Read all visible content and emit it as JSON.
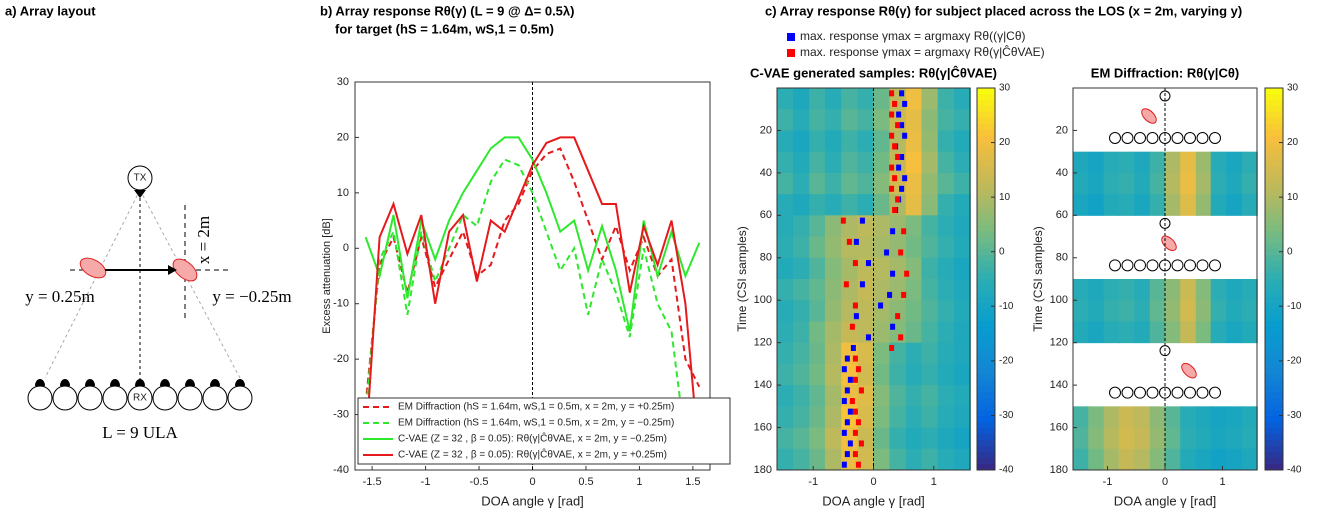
{
  "diagram": {
    "title": "a) Array layout",
    "tx": "TX",
    "rx": "RX",
    "x_label": "x = 2m",
    "y_left": "y = 0.25m",
    "y_right": "y = −0.25m",
    "array_label": "L = 9 ULA"
  },
  "chart_data": [
    {
      "type": "line",
      "title": "b) Array response Rθ(γ) (L = 9 @ Δ= 0.5λ)",
      "subtitle": "for target (hS = 1.64m, wS,1 = 0.5m)",
      "xlabel": "DOA angle γ  [rad]",
      "ylabel": "Excess attenuation [dB]",
      "x": [
        -1.56,
        -1.43,
        -1.3,
        -1.17,
        -1.04,
        -0.91,
        -0.78,
        -0.65,
        -0.52,
        -0.39,
        -0.26,
        -0.13,
        0,
        0.13,
        0.26,
        0.39,
        0.52,
        0.65,
        0.78,
        0.91,
        1.04,
        1.17,
        1.3,
        1.43,
        1.56
      ],
      "xlim": [
        -1.66,
        1.66
      ],
      "xticks": [
        -1.5,
        -1,
        -0.5,
        0,
        0.5,
        1,
        1.5
      ],
      "ylim": [
        -40,
        30
      ],
      "yticks": [
        -40,
        -30,
        -20,
        -10,
        0,
        10,
        20,
        30
      ],
      "series": [
        {
          "name": "EM Diffraction (hS = 1.64m, wS,1 = 0.5m, x = 2m, y = +0.25m)",
          "color": "#e41a1c",
          "style": "dashed",
          "values": [
            -28,
            -3,
            2,
            -8,
            2,
            -7,
            -2,
            3,
            -5,
            -3,
            5,
            8,
            14,
            17,
            18,
            12,
            5,
            -2,
            4,
            -4,
            2,
            -5,
            -2,
            -20,
            -25
          ]
        },
        {
          "name": "EM Diffraction (hS = 1.64m, wS,1 = 0.5m, x = 2m, y = −0.25m)",
          "color": "#2ee82e",
          "style": "dashed",
          "values": [
            -30,
            -2,
            3,
            -12,
            3,
            -6,
            0,
            6,
            4,
            12,
            16,
            15,
            10,
            3,
            -4,
            0,
            -12,
            -2,
            -8,
            -16,
            0,
            -10,
            -15,
            -35,
            -38
          ]
        },
        {
          "name": "C-VAE (Z = 32 , β = 0.05): Rθ(γ|ĈθVAE, x = 2m, y = −0.25m)",
          "color": "#2ee82e",
          "style": "solid",
          "values": [
            2,
            -5,
            6,
            -9,
            5,
            -2,
            5,
            10,
            14,
            18,
            20,
            20,
            16,
            10,
            3,
            5,
            -4,
            4,
            -4,
            -15,
            5,
            -5,
            3,
            -5,
            1
          ]
        },
        {
          "name": "C-VAE (Z = 32 , β = 0.05): Rθ(γ|ĈθVAE, x = 2m, y = +0.25m)",
          "color": "#e41a1c",
          "style": "solid",
          "values": [
            -36,
            2,
            8,
            -1,
            6,
            -10,
            3,
            6,
            -6,
            5,
            3,
            9,
            15,
            19,
            20,
            20,
            14,
            8,
            8,
            -8,
            4,
            -3,
            5,
            -10,
            -38
          ]
        }
      ]
    },
    {
      "type": "heatmap",
      "title": "c) Array response Rθ(γ) for subject placed across the LOS (x = 2m, varying y)",
      "subtitle": "C-VAE generated samples: Rθ(γ|ĈθVAE)",
      "xlabel": "DOA angle γ [rad]",
      "ylabel": "Time (CSI samples)",
      "colormap": "parula",
      "y_reversed": true,
      "x": [
        -1.47,
        -1.2,
        -0.93,
        -0.67,
        -0.4,
        -0.13,
        0.13,
        0.4,
        0.67,
        0.93,
        1.2,
        1.47
      ],
      "y": [
        5,
        15,
        25,
        35,
        45,
        55,
        65,
        75,
        85,
        95,
        105,
        115,
        125,
        135,
        145,
        155,
        165,
        175
      ],
      "xlim": [
        -1.6,
        1.6
      ],
      "xticks": [
        -1,
        0,
        1
      ],
      "ylim": [
        0,
        180
      ],
      "yticks": [
        20,
        40,
        60,
        80,
        100,
        120,
        140,
        160,
        180
      ],
      "clim": [
        -40,
        30
      ],
      "cticks": [
        -40,
        -30,
        -20,
        -10,
        0,
        10,
        20,
        30
      ],
      "z": [
        [
          -5,
          -8,
          -3,
          -6,
          -2,
          -4,
          2,
          12,
          20,
          8,
          -3,
          -6
        ],
        [
          -3,
          -6,
          -2,
          -4,
          0,
          -2,
          4,
          14,
          18,
          6,
          -2,
          -4
        ],
        [
          -6,
          -9,
          -4,
          -7,
          -3,
          -5,
          1,
          11,
          19,
          7,
          -4,
          -7
        ],
        [
          -4,
          -7,
          -2,
          -5,
          -1,
          -3,
          3,
          13,
          21,
          9,
          -2,
          -5
        ],
        [
          -2,
          -5,
          0,
          -3,
          1,
          -1,
          5,
          15,
          19,
          7,
          0,
          -3
        ],
        [
          -6,
          -8,
          -4,
          -6,
          -3,
          -5,
          2,
          10,
          18,
          6,
          -4,
          -7
        ],
        [
          -6,
          -4,
          0,
          6,
          10,
          12,
          10,
          8,
          4,
          -2,
          -5,
          -8
        ],
        [
          -5,
          -3,
          2,
          7,
          11,
          11,
          9,
          7,
          3,
          -1,
          -4,
          -7
        ],
        [
          -7,
          -5,
          -1,
          5,
          9,
          12,
          11,
          9,
          5,
          -3,
          -6,
          -9
        ],
        [
          -4,
          -2,
          1,
          6,
          10,
          13,
          10,
          8,
          4,
          -2,
          -5,
          -8
        ],
        [
          -6,
          -4,
          0,
          7,
          11,
          12,
          9,
          6,
          3,
          -1,
          -4,
          -7
        ],
        [
          -5,
          -3,
          3,
          9,
          13,
          12,
          8,
          5,
          2,
          -2,
          -5,
          -8
        ],
        [
          -4,
          -2,
          2,
          10,
          20,
          16,
          4,
          -2,
          -5,
          -3,
          -6,
          -8
        ],
        [
          -3,
          -1,
          3,
          11,
          21,
          15,
          3,
          -3,
          -6,
          -4,
          -7,
          -9
        ],
        [
          -5,
          -3,
          1,
          9,
          19,
          17,
          5,
          -1,
          -4,
          -2,
          -5,
          -7
        ],
        [
          -4,
          -2,
          2,
          10,
          22,
          16,
          4,
          -2,
          -5,
          -3,
          -6,
          -8
        ],
        [
          -2,
          0,
          4,
          12,
          20,
          14,
          2,
          -4,
          -7,
          -5,
          -8,
          -10
        ],
        [
          -4,
          -2,
          2,
          10,
          19,
          15,
          4,
          -2,
          -5,
          -3,
          -6,
          -8
        ]
      ],
      "series": [
        {
          "name": "max. response γmax = argmaxγ Rθ((γ|Cθ)",
          "color": "#0000ff",
          "x": [
            0.45,
            0.5,
            0.4,
            0.45,
            0.5,
            0.35,
            0.45,
            0.4,
            0.5,
            0.45,
            0.4,
            0.35,
            -0.2,
            0.3,
            -0.3,
            0.2,
            -0.1,
            0.3,
            -0.2,
            0.25,
            0.1,
            -0.3,
            0.3,
            -0.1,
            -0.35,
            -0.45,
            -0.5,
            -0.4,
            -0.45,
            -0.5,
            -0.4,
            -0.45,
            -0.5,
            -0.4,
            -0.45,
            -0.5
          ],
          "y": [
            2.5,
            7.5,
            12.5,
            17.5,
            22.5,
            27.5,
            32.5,
            37.5,
            42.5,
            47.5,
            52.5,
            57.5,
            62.5,
            67.5,
            72.5,
            77.5,
            82.5,
            87.5,
            92.5,
            97.5,
            102.5,
            107.5,
            112.5,
            117.5,
            122.5,
            127.5,
            132.5,
            137.5,
            142.5,
            147.5,
            152.5,
            157.5,
            162.5,
            167.5,
            172.5,
            177.5
          ]
        },
        {
          "name": "max. response γmax = argmaxγ Rθ(γ|ĈθVAE)",
          "color": "#ff0000",
          "x": [
            0.3,
            0.35,
            0.3,
            0.4,
            0.3,
            0.35,
            0.4,
            0.3,
            0.35,
            0.3,
            0.4,
            0.35,
            -0.5,
            0.5,
            -0.4,
            0.45,
            -0.3,
            0.55,
            -0.45,
            0.5,
            -0.3,
            0.4,
            -0.35,
            0.45,
            0.3,
            -0.3,
            -0.25,
            -0.3,
            -0.2,
            -0.35,
            -0.3,
            -0.25,
            -0.3,
            -0.2,
            -0.3,
            -0.25
          ],
          "y": [
            2.5,
            7.5,
            12.5,
            17.5,
            22.5,
            27.5,
            32.5,
            37.5,
            42.5,
            47.5,
            52.5,
            57.5,
            62.5,
            67.5,
            72.5,
            77.5,
            82.5,
            87.5,
            92.5,
            97.5,
            102.5,
            107.5,
            112.5,
            117.5,
            122.5,
            127.5,
            132.5,
            137.5,
            142.5,
            147.5,
            152.5,
            157.5,
            162.5,
            167.5,
            172.5,
            177.5
          ]
        }
      ]
    },
    {
      "type": "heatmap",
      "subtitle": "EM Diffraction: Rθ(γ|Cθ)",
      "xlabel": "DOA angle γ [rad]",
      "ylabel": "Time (CSI samples)",
      "colormap": "parula",
      "y_reversed": true,
      "x": [
        -1.47,
        -1.2,
        -0.93,
        -0.67,
        -0.4,
        -0.13,
        0.13,
        0.4,
        0.67,
        0.93,
        1.2,
        1.47
      ],
      "y": [
        5,
        15,
        25,
        35,
        45,
        55,
        65,
        75,
        85,
        95,
        105,
        115,
        125,
        135,
        145,
        155,
        165,
        175
      ],
      "xlim": [
        -1.6,
        1.6
      ],
      "xticks": [
        -1,
        0,
        1
      ],
      "ylim": [
        0,
        180
      ],
      "yticks": [
        20,
        40,
        60,
        80,
        100,
        120,
        140,
        160,
        180
      ],
      "clim": [
        -40,
        30
      ],
      "cticks": [
        -40,
        -30,
        -20,
        -10,
        0,
        10,
        20,
        30
      ],
      "z": [
        null,
        null,
        null,
        [
          -8,
          -10,
          -6,
          -5,
          -8,
          -3,
          10,
          18,
          8,
          -6,
          -9,
          -5
        ],
        [
          -7,
          -9,
          -5,
          -4,
          -7,
          -2,
          11,
          19,
          9,
          -5,
          -8,
          -4
        ],
        [
          -9,
          -11,
          -7,
          -6,
          -9,
          -4,
          9,
          17,
          7,
          -7,
          -10,
          -6
        ],
        null,
        null,
        null,
        [
          -6,
          -8,
          -5,
          -4,
          -6,
          0,
          6,
          14,
          5,
          -5,
          -8,
          -6
        ],
        [
          -5,
          -7,
          -4,
          -3,
          -5,
          1,
          7,
          15,
          6,
          -4,
          -7,
          -5
        ],
        [
          -7,
          -9,
          -6,
          -5,
          -7,
          -1,
          5,
          13,
          4,
          -6,
          -9,
          -7
        ],
        null,
        null,
        null,
        [
          -2,
          4,
          10,
          14,
          12,
          6,
          0,
          -6,
          -8,
          -10,
          -9,
          -7
        ],
        [
          -1,
          5,
          11,
          15,
          13,
          7,
          1,
          -5,
          -7,
          -9,
          -8,
          -6
        ],
        [
          -3,
          3,
          9,
          13,
          11,
          5,
          -1,
          -7,
          -9,
          -11,
          -10,
          -8
        ]
      ]
    }
  ]
}
